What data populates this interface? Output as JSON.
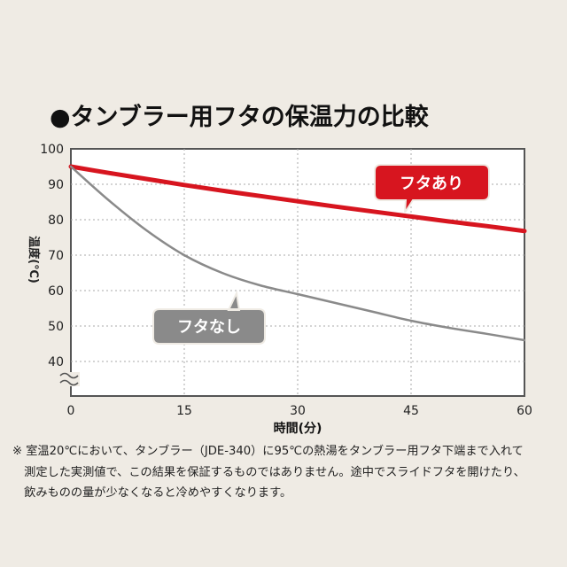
{
  "chart_data": {
    "type": "line",
    "title": "●タンブラー用フタの保温力の比較",
    "xlabel": "時間(分)",
    "ylabel": "温度(℃)",
    "xlim": [
      0,
      60
    ],
    "ylim": [
      40,
      100
    ],
    "xticks": [
      0,
      15,
      30,
      45,
      60
    ],
    "yticks": [
      40,
      50,
      60,
      70,
      80,
      90,
      100
    ],
    "grid": "dotted vertical at 15,30,45; dotted horizontal every 10",
    "axis_break": true,
    "series": [
      {
        "name": "フタあり",
        "color": "#d7151f",
        "x": [
          0,
          5,
          10,
          15,
          20,
          25,
          30,
          35,
          40,
          45,
          50,
          55,
          60
        ],
        "y": [
          95,
          93.2,
          91.5,
          89.8,
          88.2,
          86.7,
          85.2,
          83.7,
          82.3,
          80.9,
          79.5,
          78.2,
          76.8
        ]
      },
      {
        "name": "フタなし",
        "color": "#8a8a8a",
        "x": [
          0,
          5,
          10,
          15,
          20,
          25,
          30,
          35,
          40,
          45,
          50,
          55,
          60
        ],
        "y": [
          95,
          85.5,
          77.0,
          70.0,
          65.0,
          61.5,
          59.0,
          56.5,
          54.0,
          51.5,
          49.5,
          47.8,
          46.0
        ]
      }
    ]
  },
  "note": {
    "line1": "※ 室温20℃において、タンブラー（JDE-340）に95℃の熱湯をタンブラー用フタ下端まで入れて",
    "line2": "　測定した実測値で、この結果を保証するものではありません。途中でスライドフタを開けたり、",
    "line3": "　飲みものの量が少なくなると冷めやすくなります。"
  }
}
